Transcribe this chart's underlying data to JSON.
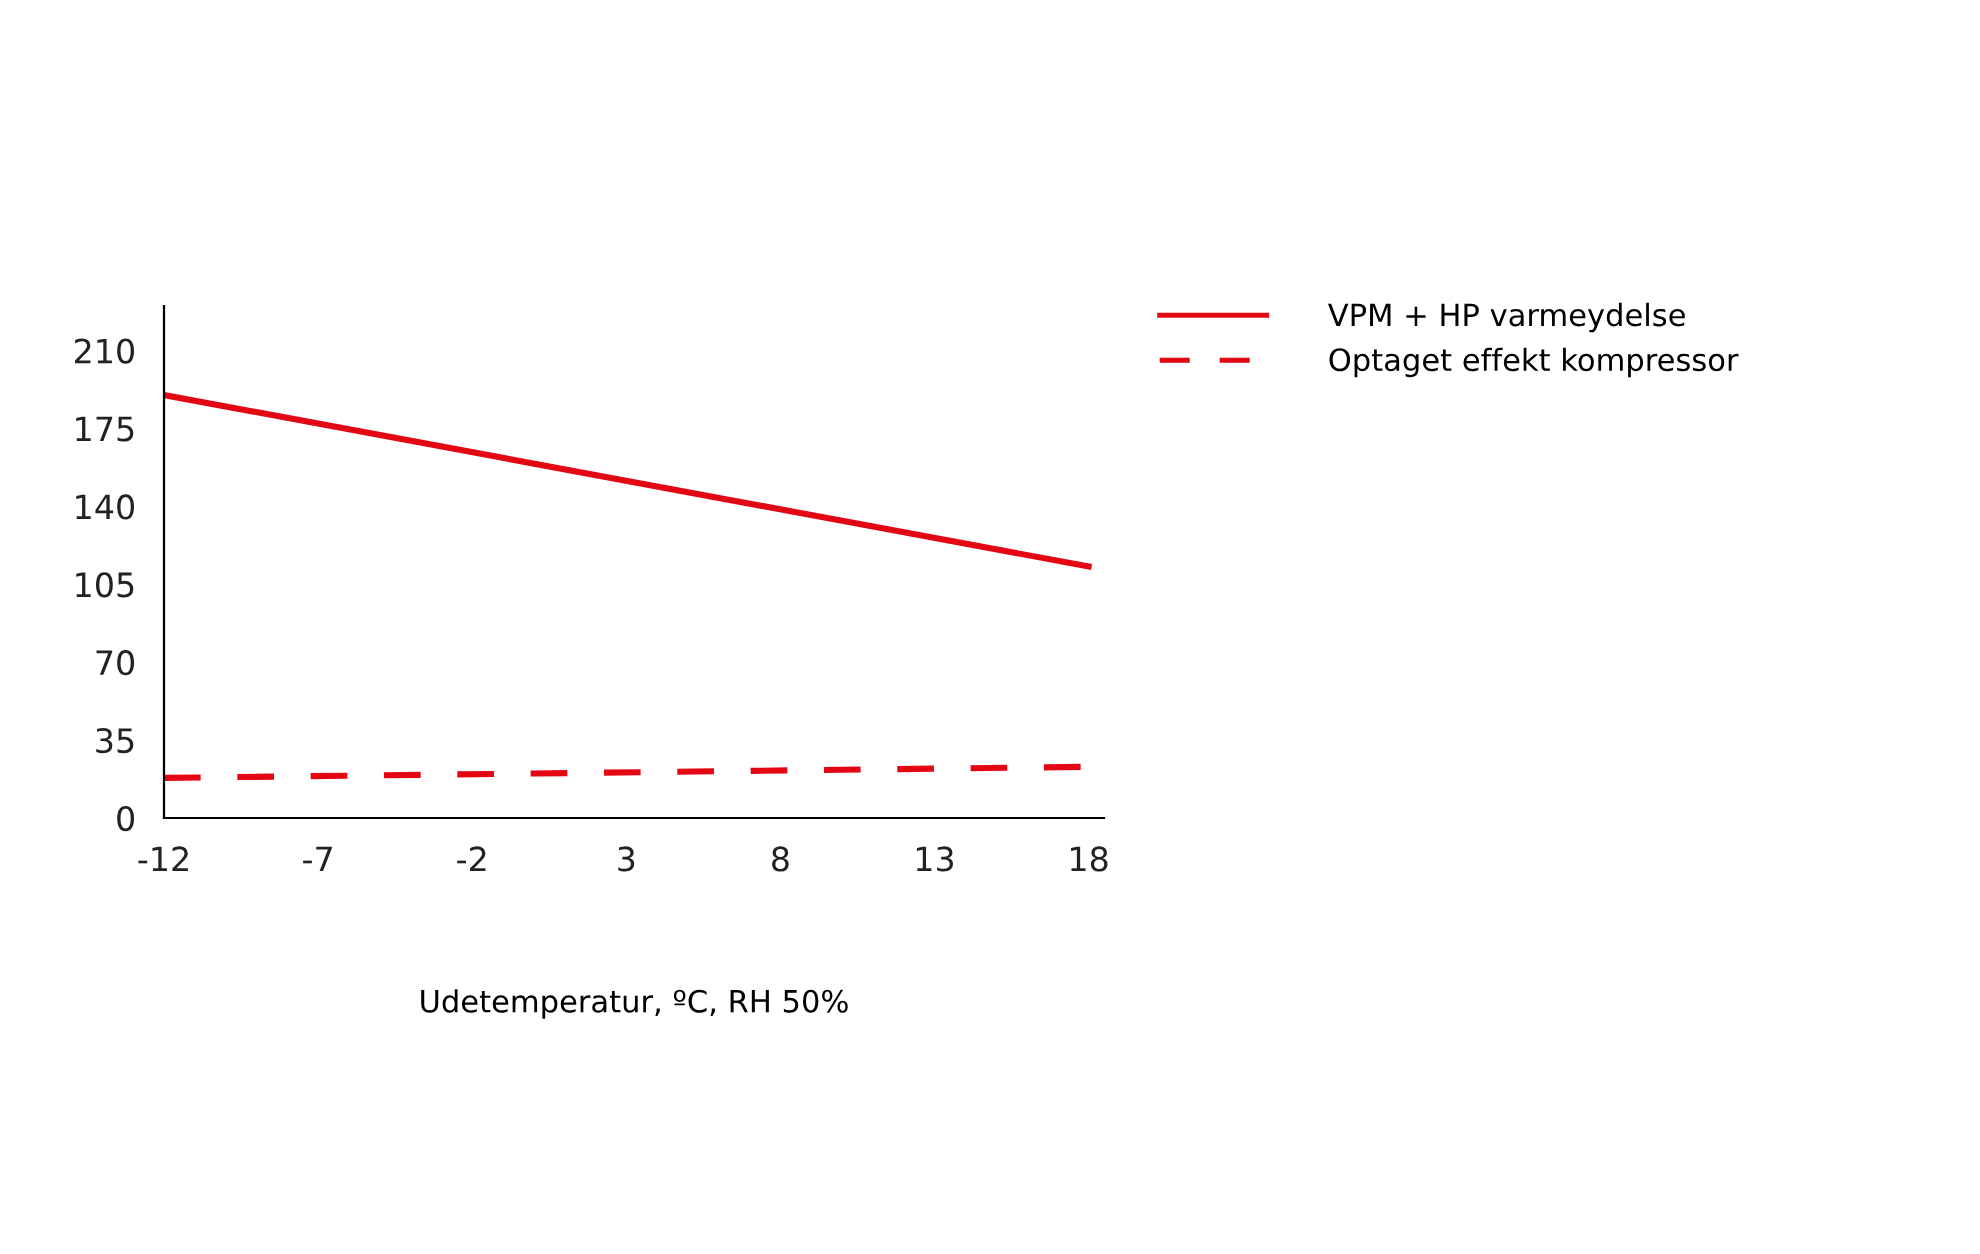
{
  "chart_data": {
    "type": "line",
    "xlabel": "Udetemperatur, ºC, RH 50%",
    "x": [
      -12,
      18
    ],
    "series": [
      {
        "name": "VPM + HP varmeydelse",
        "color": "#e30613",
        "values": [
          190,
          113
        ],
        "line_style": "solid"
      },
      {
        "name": "Optaget effekt kompressor",
        "color": "#e30613",
        "values": [
          18,
          23
        ],
        "line_style": "dashed"
      }
    ],
    "xlim": [
      -12,
      18.5
    ],
    "xticks": [
      -12,
      -7,
      -2,
      3,
      8,
      13,
      18
    ],
    "ylim": [
      0,
      230
    ],
    "yticks": [
      0,
      35,
      70,
      105,
      140,
      175,
      210
    ],
    "grid": false,
    "legend": "top right",
    "marker": "none"
  }
}
